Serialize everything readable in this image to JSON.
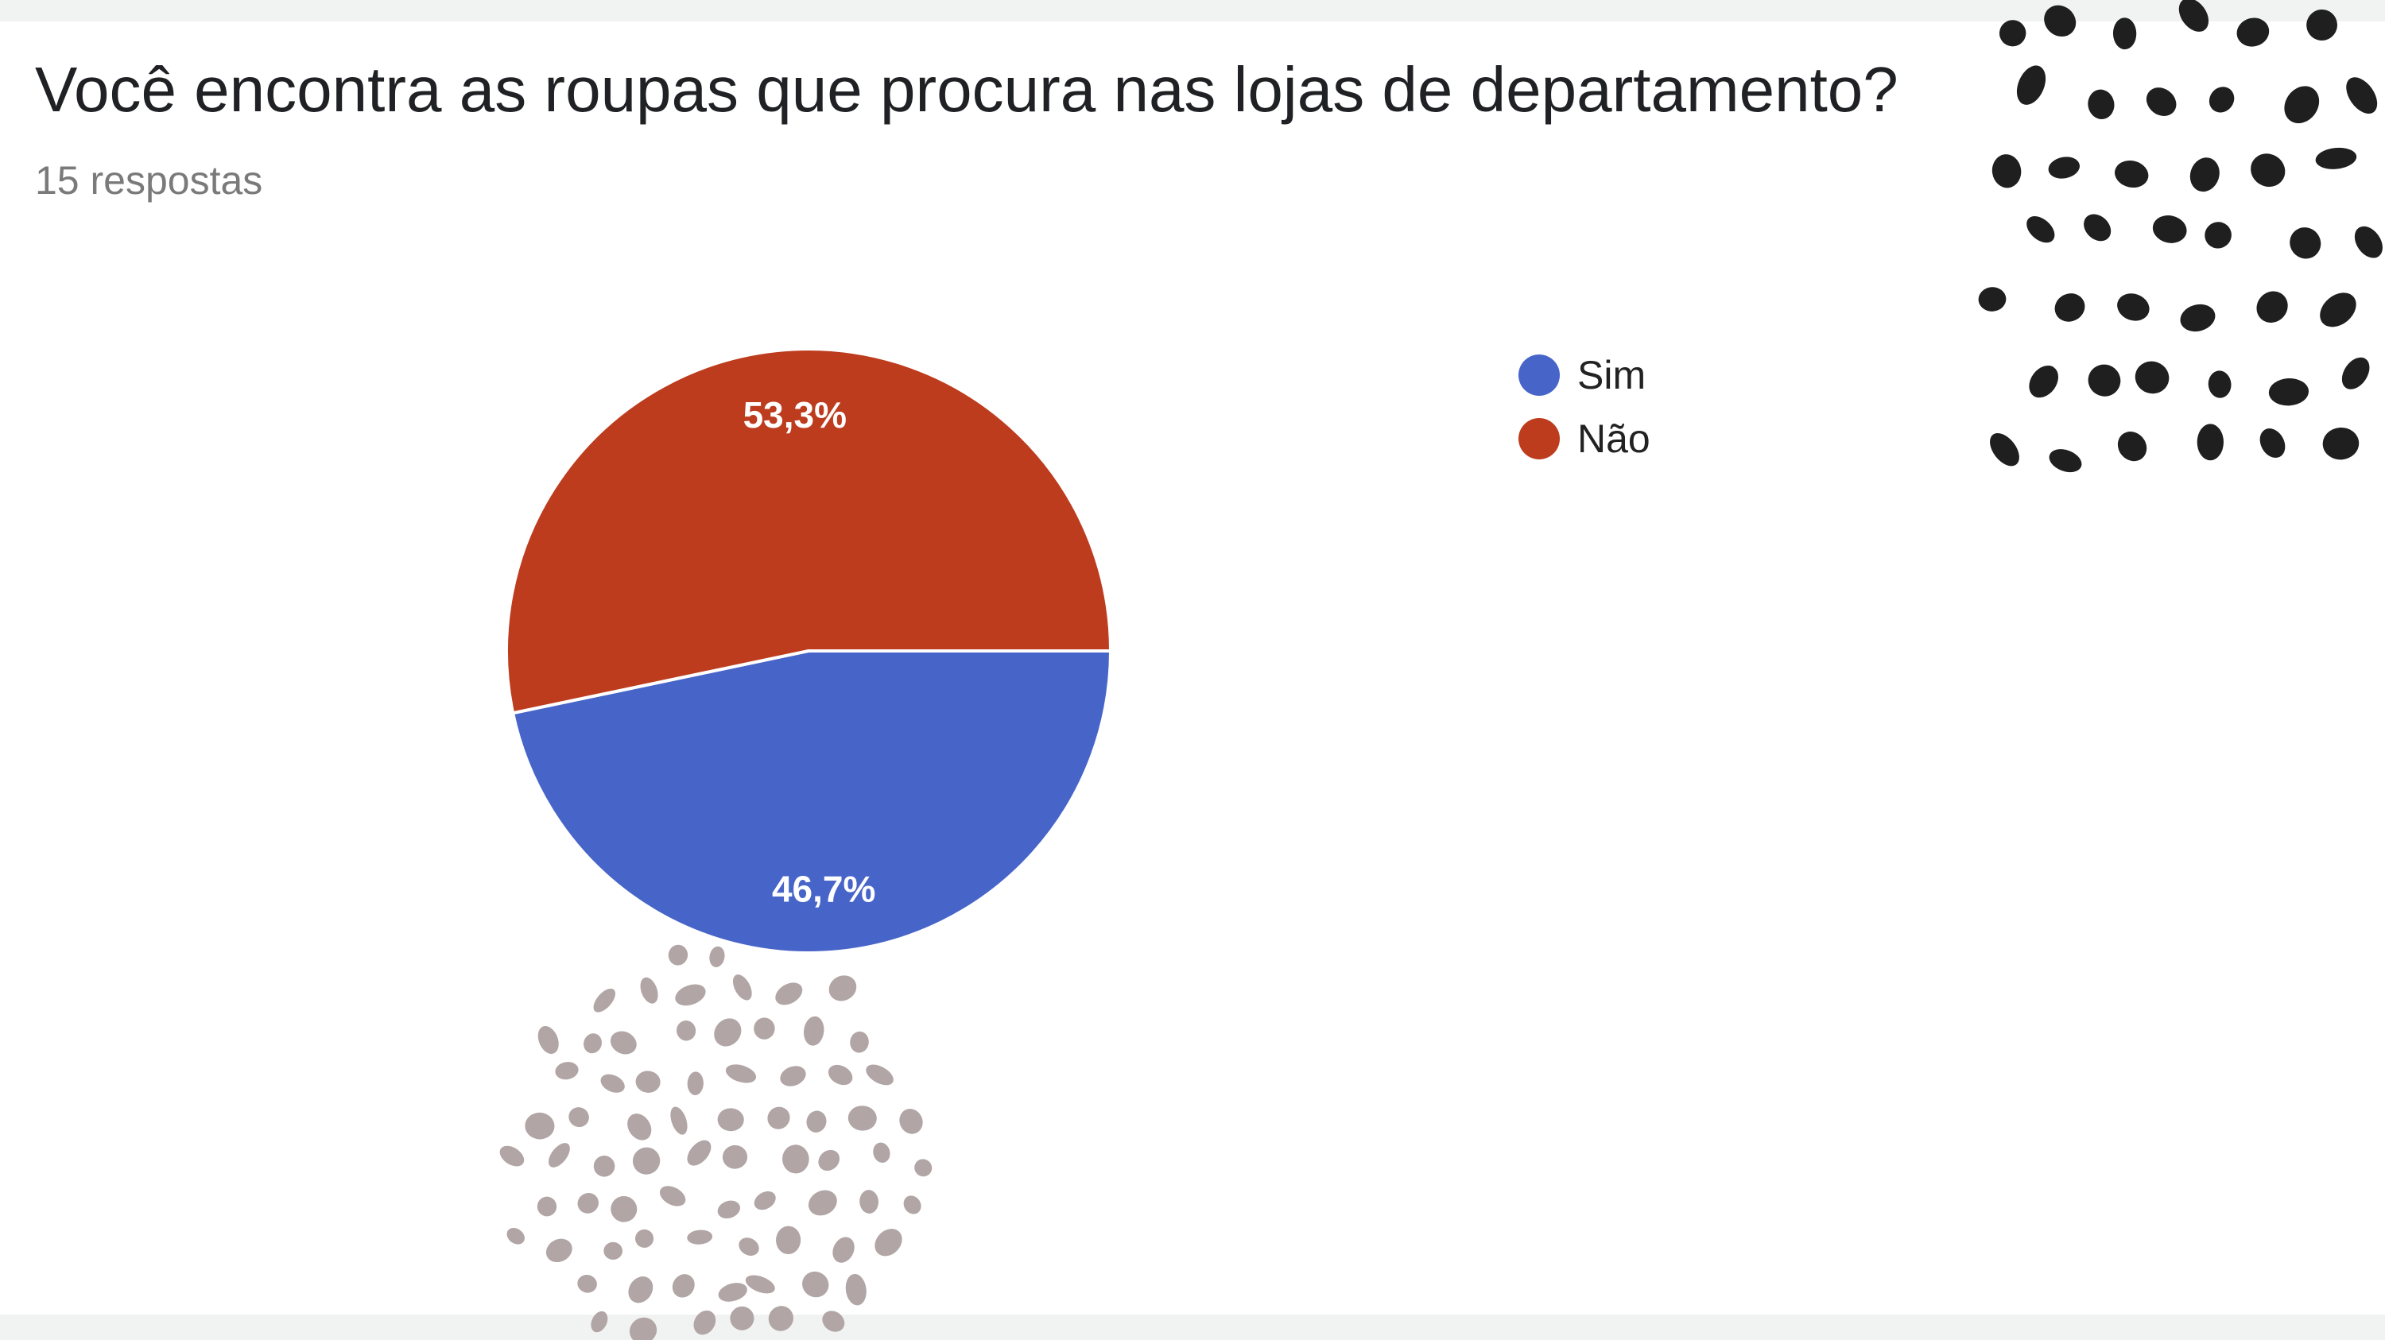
{
  "header": {
    "question": "Você encontra as roupas que procura nas lojas de departamento?",
    "responses": "15 respostas"
  },
  "colors": {
    "sim": "#4765c9",
    "nao": "#bd3c1e",
    "dots_dark": "#1f1f1f",
    "dots_light": "#b1a5a5"
  },
  "chart_data": {
    "type": "pie",
    "slices": [
      {
        "label": "Sim",
        "value": 46.7,
        "display": "46,7%",
        "color": "#4765c9"
      },
      {
        "label": "Não",
        "value": 53.3,
        "display": "53,3%",
        "color": "#bd3c1e"
      }
    ],
    "legend": [
      {
        "label": "Sim",
        "color": "#4765c9"
      },
      {
        "label": "Não",
        "color": "#bd3c1e"
      }
    ],
    "legend_placement": "right"
  }
}
